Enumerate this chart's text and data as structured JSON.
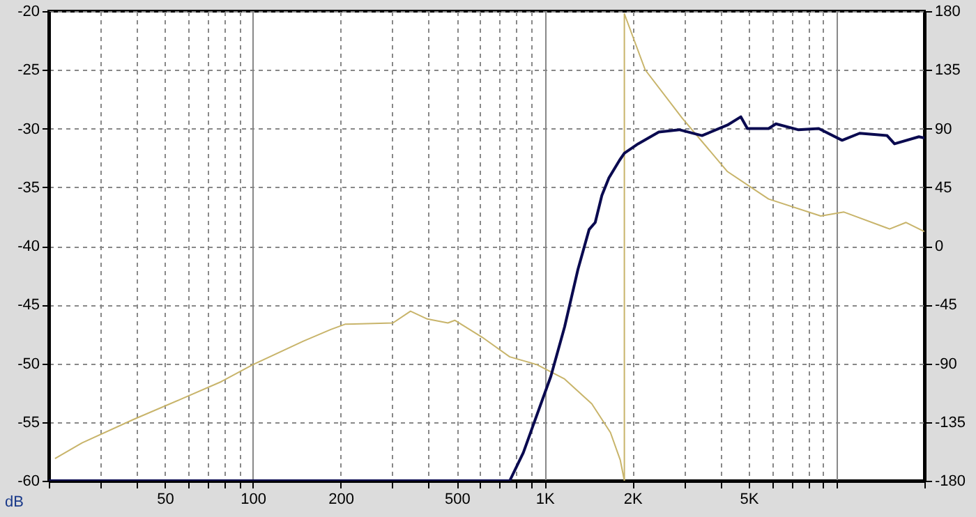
{
  "chart_data": {
    "type": "line",
    "ylabel": "dB",
    "log": "x",
    "grid": true,
    "xlim": [
      20,
      20000
    ],
    "xticks": [
      {
        "value": 20,
        "label": null
      },
      {
        "value": 30,
        "label": null
      },
      {
        "value": 40,
        "label": null
      },
      50,
      {
        "value": 60,
        "label": null
      },
      {
        "value": 70,
        "label": null
      },
      {
        "value": 80,
        "label": null
      },
      {
        "value": 90,
        "label": null
      },
      100,
      200,
      {
        "value": 300,
        "label": null
      },
      {
        "value": 400,
        "label": null
      },
      500,
      {
        "value": 600,
        "label": null
      },
      {
        "value": 700,
        "label": null
      },
      {
        "value": 800,
        "label": null
      },
      {
        "value": 900,
        "label": null
      },
      {
        "value": 1000,
        "label": "1K"
      },
      {
        "value": 2000,
        "label": "2K"
      },
      {
        "value": 3000,
        "label": null
      },
      {
        "value": 4000,
        "label": null
      },
      {
        "value": 5000,
        "label": "5K"
      },
      {
        "value": 6000,
        "label": null
      },
      {
        "value": 7000,
        "label": null
      },
      {
        "value": 8000,
        "label": null
      },
      {
        "value": 9000,
        "label": null
      },
      {
        "value": 10000,
        "label": null
      },
      {
        "value": 20000,
        "label": null
      }
    ],
    "ylim": [
      -60,
      -20
    ],
    "yticks": [
      -60,
      -55,
      -50,
      -45,
      -40,
      -35,
      -30,
      -25,
      -20
    ],
    "y2lim": [
      -180,
      180
    ],
    "y2ticks": [
      -180,
      -135,
      -90,
      -45,
      0,
      45,
      90,
      135,
      180
    ],
    "series": [
      {
        "color": "#c8b46a",
        "axis": "y2",
        "x": [
          21,
          26,
          39,
          56,
          78,
          100,
          149,
          185,
          207,
          302,
          347,
          396,
          466,
          492,
          611,
          759,
          941,
          1170,
          1450,
          1680,
          1815,
          1875,
          1875,
          2210,
          2960,
          4230,
          5850,
          8830,
          10600,
          15200,
          17300,
          20000
        ],
        "values": [
          -163,
          -151,
          -133,
          -118,
          -104,
          -91,
          -73,
          -64,
          -60,
          -59,
          -50,
          -56,
          -59,
          -57,
          -70,
          -85,
          -91,
          -102,
          -121,
          -143,
          -164,
          -180,
          178,
          135,
          98,
          57,
          36,
          23,
          26,
          13,
          18,
          11
        ]
      },
      {
        "color": "#0a0a50",
        "x": [
          20,
          759,
          845,
          1050,
          1170,
          1300,
          1420,
          1490,
          1570,
          1660,
          1805,
          1875,
          2090,
          2460,
          2890,
          3460,
          4230,
          4700,
          4950,
          5850,
          6200,
          7380,
          8690,
          10450,
          12000,
          14900,
          15800,
          19150,
          20000
        ],
        "values": [
          -60,
          -60,
          -57.6,
          -51.1,
          -46.9,
          -42,
          -38.6,
          -38,
          -35.7,
          -34.2,
          -32.7,
          -32.1,
          -31.3,
          -30.3,
          -30.1,
          -30.6,
          -29.7,
          -29,
          -30,
          -30,
          -29.6,
          -30.1,
          -30,
          -31,
          -30.4,
          -30.6,
          -31.3,
          -30.7,
          -30.8
        ]
      }
    ]
  }
}
